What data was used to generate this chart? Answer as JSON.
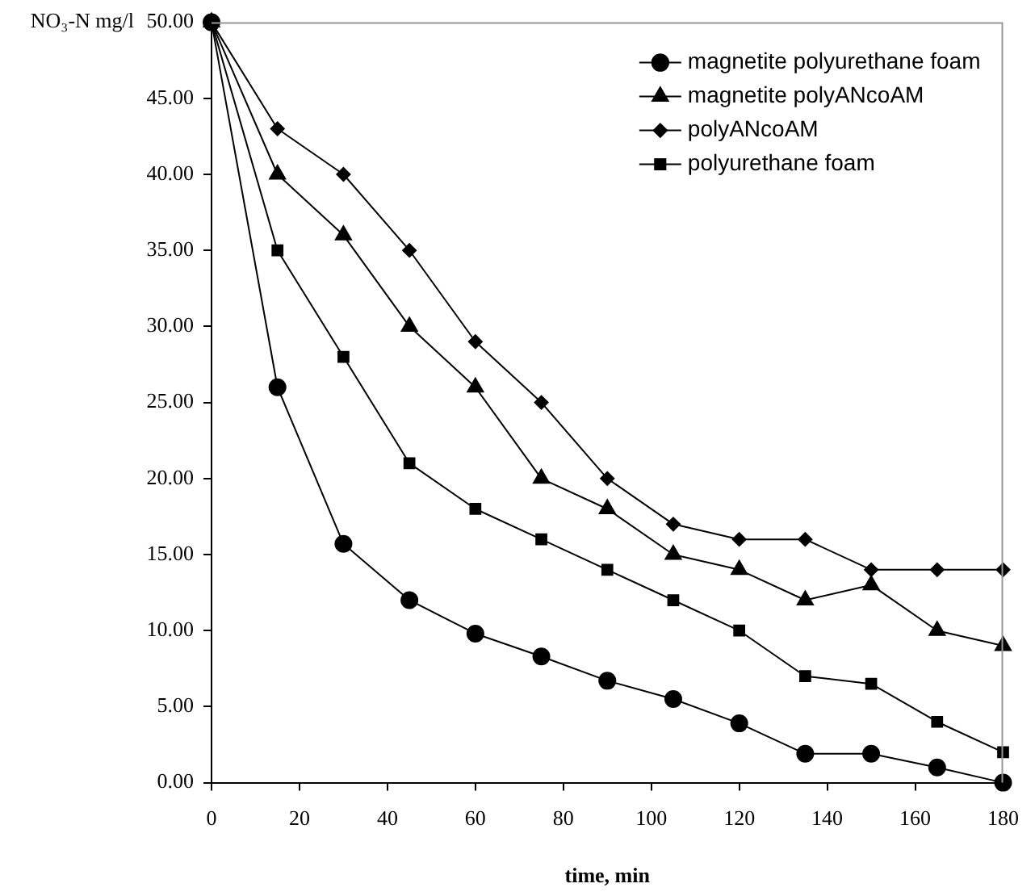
{
  "chart_data": {
    "type": "line",
    "xlabel": "time, min",
    "ylabel": "NO₃-N mg/l",
    "x": [
      0,
      15,
      30,
      45,
      60,
      75,
      90,
      105,
      120,
      135,
      150,
      165,
      180
    ],
    "xlim": [
      0,
      180
    ],
    "xticks": [
      0,
      20,
      40,
      60,
      80,
      100,
      120,
      140,
      160,
      180
    ],
    "ylim": [
      0,
      50
    ],
    "yticks": [
      {
        "value": 0,
        "label": "0.00"
      },
      {
        "value": 5,
        "label": "5.00"
      },
      {
        "value": 10,
        "label": "10.00"
      },
      {
        "value": 15,
        "label": "15.00"
      },
      {
        "value": 20,
        "label": "20.00"
      },
      {
        "value": 25,
        "label": "25.00"
      },
      {
        "value": 30,
        "label": "30.00"
      },
      {
        "value": 35,
        "label": "35.00"
      },
      {
        "value": 40,
        "label": "40.00"
      },
      {
        "value": 45,
        "label": "45.00"
      },
      {
        "value": 50,
        "label": "50.00"
      }
    ],
    "grid": false,
    "legend": "top right",
    "line_style": "solid",
    "series": [
      {
        "name": "magnetite polyurethane foam",
        "color": "#000000",
        "marker": "circle",
        "values": [
          50,
          26,
          15.7,
          12,
          9.8,
          8.3,
          6.7,
          5.5,
          3.9,
          1.9,
          1.9,
          1,
          0
        ]
      },
      {
        "name": "magnetite polyANcoAM",
        "color": "#000000",
        "marker": "triangle",
        "values": [
          50,
          40,
          36,
          30,
          26,
          20,
          18,
          15,
          14,
          12,
          13,
          10,
          9
        ]
      },
      {
        "name": "polyANcoAM",
        "color": "#000000",
        "marker": "diamond",
        "values": [
          50,
          43,
          40,
          35,
          29,
          25,
          20,
          17,
          16,
          16,
          14,
          14,
          14
        ]
      },
      {
        "name": "polyurethane foam",
        "color": "#000000",
        "marker": "square",
        "values": [
          50,
          35,
          28,
          21,
          18,
          16,
          14,
          12,
          10,
          7,
          6.5,
          4,
          2
        ]
      }
    ]
  }
}
